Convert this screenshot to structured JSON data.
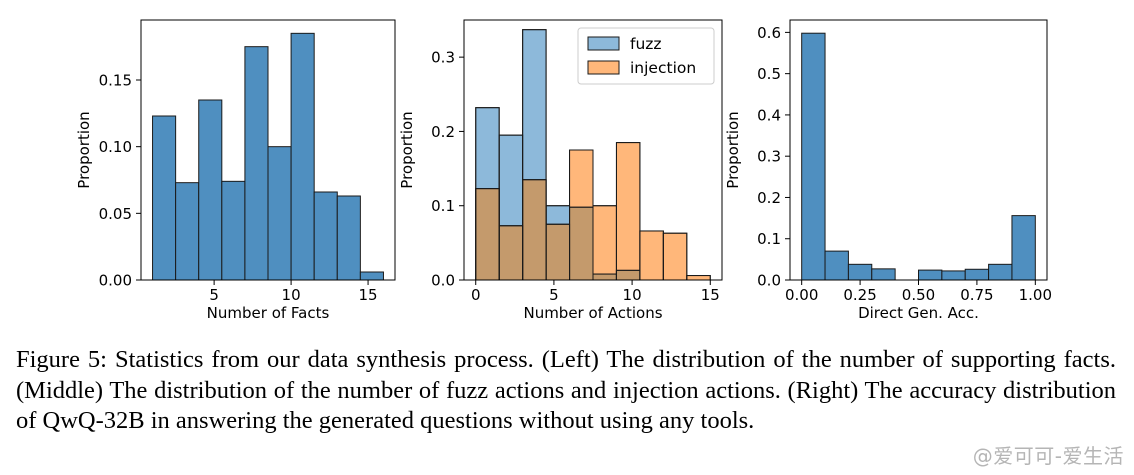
{
  "chart_data": [
    {
      "type": "bar",
      "xlabel": "Number of Facts",
      "ylabel": "Proportion",
      "xlim": [
        0.25,
        16.75
      ],
      "ylim": [
        0,
        0.195
      ],
      "xticks": [
        5,
        10,
        15
      ],
      "yticks": [
        0.0,
        0.05,
        0.1,
        0.15
      ],
      "ytick_labels": [
        "0.00",
        "0.05",
        "0.10",
        "0.15"
      ],
      "bin_edges": [
        1.0,
        2.5,
        4.0,
        5.5,
        7.0,
        8.5,
        10.0,
        11.5,
        13.0,
        14.5,
        16.0
      ],
      "series": [
        {
          "color": "#4f8fc0",
          "values": [
            0.123,
            0.073,
            0.135,
            0.074,
            0.175,
            0.1,
            0.185,
            0.066,
            0.063,
            0.006
          ]
        }
      ]
    },
    {
      "type": "bar",
      "xlabel": "Number of Actions",
      "ylabel": "Proportion",
      "xlim": [
        -0.75,
        15.75
      ],
      "ylim": [
        0,
        0.35
      ],
      "xticks": [
        0,
        5,
        10,
        15
      ],
      "yticks": [
        0.0,
        0.1,
        0.2,
        0.3
      ],
      "ytick_labels": [
        "0.0",
        "0.1",
        "0.2",
        "0.3"
      ],
      "bin_edges": [
        0.0,
        1.5,
        3.0,
        4.5,
        6.0,
        7.5,
        9.0,
        10.5,
        12.0,
        13.5,
        15.0
      ],
      "legend_position": "top-right",
      "series": [
        {
          "name": "fuzz",
          "color": "#8db9da",
          "values": [
            0.232,
            0.195,
            0.337,
            0.1,
            0.098,
            0.008,
            0.013,
            0.0,
            0.0,
            0.0
          ]
        },
        {
          "name": "injection",
          "color": "#ffb77a",
          "values": [
            0.123,
            0.073,
            0.135,
            0.075,
            0.175,
            0.1,
            0.185,
            0.066,
            0.063,
            0.006
          ]
        }
      ],
      "overlap_color": "#c49a6c"
    },
    {
      "type": "bar",
      "xlabel": "Direct Gen. Acc.",
      "ylabel": "Proportion",
      "xlim": [
        -0.05,
        1.05
      ],
      "ylim": [
        0,
        0.63
      ],
      "xticks": [
        0.0,
        0.25,
        0.5,
        0.75,
        1.0
      ],
      "xtick_labels": [
        "0.00",
        "0.25",
        "0.50",
        "0.75",
        "1.00"
      ],
      "yticks": [
        0.0,
        0.1,
        0.2,
        0.3,
        0.4,
        0.5,
        0.6
      ],
      "ytick_labels": [
        "0.0",
        "0.1",
        "0.2",
        "0.3",
        "0.4",
        "0.5",
        "0.6"
      ],
      "bin_edges": [
        0.0,
        0.1,
        0.2,
        0.3,
        0.4,
        0.5,
        0.6,
        0.7,
        0.8,
        0.9,
        1.0
      ],
      "series": [
        {
          "color": "#4f8fc0",
          "values": [
            0.598,
            0.07,
            0.038,
            0.027,
            0.0,
            0.024,
            0.022,
            0.026,
            0.038,
            0.156
          ]
        }
      ]
    }
  ],
  "caption": "Figure 5: Statistics from our data synthesis process. (Left) The distribution of the number of supporting facts. (Middle) The distribution of the number of fuzz actions and injection actions. (Right) The accuracy distribution of QwQ-32B in answering the generated questions without using any tools.",
  "watermark": "@爱可可-爱生活"
}
